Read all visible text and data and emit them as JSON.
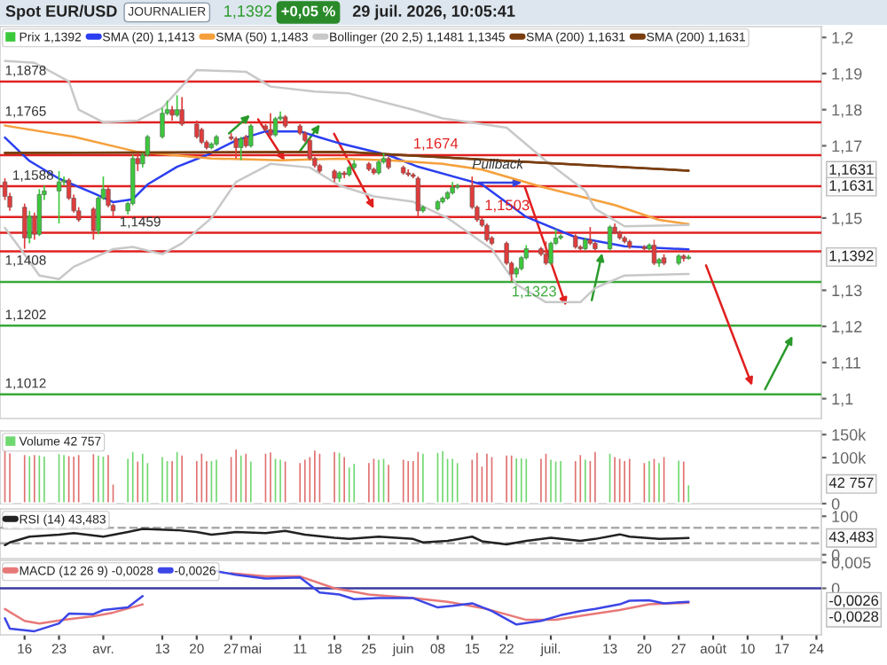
{
  "chart_data": [
    {
      "type": "candlestick",
      "title": "Spot EUR/USD",
      "annotations": [
        "JOURNALIER",
        "1,1392",
        "+0,05 %",
        "29 juil. 2026, 10:05:41",
        {
          "text": "1,1674",
          "x": "2026-06-03",
          "y": 1.1674
        },
        {
          "text": "1,1503",
          "x": "2026-06-10",
          "y": 1.1503
        },
        {
          "text": "1,1323",
          "x": "2026-06-23",
          "y": 1.1323
        },
        {
          "text": "Pullback",
          "x": "2026-06-15",
          "y": 1.1629
        },
        {
          "text": "1,1631",
          "y": 1.1631
        },
        "1,1631",
        {
          "text": "1,1392",
          "y": 1.1392
        }
      ],
      "xlim": [
        "2026-03-11",
        "2026-08-25"
      ],
      "ylim": [
        1.0945,
        1.203
      ],
      "yticks": [
        {
          "value": 1.2,
          "label": "1,2"
        },
        {
          "value": 1.19,
          "label": "1,19"
        },
        {
          "value": 1.18,
          "label": "1,18"
        },
        {
          "value": 1.17,
          "label": "1,17"
        },
        {
          "value": 1.15,
          "label": "1,15"
        },
        {
          "value": 1.13,
          "label": "1,13"
        },
        {
          "value": 1.12,
          "label": "1,12"
        },
        {
          "value": 1.11,
          "label": "1,11"
        },
        {
          "value": 1.1,
          "label": "1,1"
        }
      ],
      "tick_labels": "y",
      "legend": "top left",
      "ref_lines": [
        {
          "axis": "y",
          "value": 1.1878,
          "label": "1,1878",
          "color": "#e02020"
        },
        {
          "axis": "y",
          "value": 1.1765,
          "label": "1,1765",
          "color": "#e02020"
        },
        {
          "axis": "y",
          "value": 1.1674,
          "color": "#e02020"
        },
        {
          "axis": "y",
          "value": 1.1588,
          "label": "1,1588",
          "color": "#e02020"
        },
        {
          "axis": "y",
          "value": 1.1503,
          "color": "#e02020"
        },
        {
          "axis": "y",
          "value": 1.1459,
          "label": "1,1459",
          "color": "#e02020"
        },
        {
          "axis": "y",
          "value": 1.1408,
          "label": "1,1408",
          "color": "#e02020"
        },
        {
          "axis": "y",
          "value": 1.1323,
          "color": "#3aa83a"
        },
        {
          "axis": "y",
          "value": 1.1202,
          "label": "1,1202",
          "color": "#3aa83a"
        },
        {
          "axis": "y",
          "value": 1.1012,
          "label": "1,1012",
          "color": "#3aa83a"
        }
      ],
      "series": [
        {
          "type": "candlestick",
          "name": "Prix 1,1392",
          "x": [
            "2026-03-12",
            "2026-03-13",
            "2026-03-16",
            "2026-03-17",
            "2026-03-18",
            "2026-03-19",
            "2026-03-20",
            "2026-03-23",
            "2026-03-24",
            "2026-03-25",
            "2026-03-26",
            "2026-03-27",
            "2026-03-30",
            "2026-03-31",
            "2026-04-01",
            "2026-04-02",
            "2026-04-03",
            "2026-04-06",
            "2026-04-07",
            "2026-04-08",
            "2026-04-09",
            "2026-04-10",
            "2026-04-13",
            "2026-04-14",
            "2026-04-15",
            "2026-04-16",
            "2026-04-17",
            "2026-04-20",
            "2026-04-21",
            "2026-04-22",
            "2026-04-23",
            "2026-04-24",
            "2026-04-27",
            "2026-04-28",
            "2026-04-29",
            "2026-04-30",
            "2026-05-01",
            "2026-05-04",
            "2026-05-05",
            "2026-05-06",
            "2026-05-07",
            "2026-05-08",
            "2026-05-11",
            "2026-05-12",
            "2026-05-13",
            "2026-05-14",
            "2026-05-15",
            "2026-05-18",
            "2026-05-19",
            "2026-05-20",
            "2026-05-21",
            "2026-05-22",
            "2026-05-25",
            "2026-05-26",
            "2026-05-27",
            "2026-05-28",
            "2026-05-29",
            "2026-06-01",
            "2026-06-02",
            "2026-06-03",
            "2026-06-04",
            "2026-06-05",
            "2026-06-08",
            "2026-06-09",
            "2026-06-10",
            "2026-06-11",
            "2026-06-12",
            "2026-06-15",
            "2026-06-16",
            "2026-06-17",
            "2026-06-18",
            "2026-06-19",
            "2026-06-22",
            "2026-06-23",
            "2026-06-24",
            "2026-06-25",
            "2026-06-26",
            "2026-06-29",
            "2026-06-30",
            "2026-07-01",
            "2026-07-02",
            "2026-07-03",
            "2026-07-06",
            "2026-07-07",
            "2026-07-08",
            "2026-07-09",
            "2026-07-10",
            "2026-07-13",
            "2026-07-14",
            "2026-07-15",
            "2026-07-16",
            "2026-07-17",
            "2026-07-20",
            "2026-07-21",
            "2026-07-22",
            "2026-07-23",
            "2026-07-24",
            "2026-07-27",
            "2026-07-28",
            "2026-07-29"
          ],
          "ohlc": [
            [
              1.16,
              1.161,
              1.155,
              1.156
            ],
            [
              1.156,
              1.157,
              1.152,
              1.153
            ],
            [
              1.153,
              1.154,
              1.1415,
              1.1445
            ],
            [
              1.1445,
              1.152,
              1.143,
              1.1505
            ],
            [
              1.1505,
              1.1515,
              1.144,
              1.1455
            ],
            [
              1.1455,
              1.158,
              1.145,
              1.1565
            ],
            [
              1.1565,
              1.159,
              1.155,
              1.1575
            ],
            [
              1.1575,
              1.163,
              1.1485,
              1.16
            ],
            [
              1.16,
              1.1615,
              1.159,
              1.1605
            ],
            [
              1.1605,
              1.161,
              1.155,
              1.1555
            ],
            [
              1.1555,
              1.1565,
              1.1515,
              1.152
            ],
            [
              1.152,
              1.153,
              1.149,
              1.1495
            ],
            [
              1.1525,
              1.153,
              1.144,
              1.1465
            ],
            [
              1.1465,
              1.156,
              1.1455,
              1.1555
            ],
            [
              1.1555,
              1.1615,
              1.155,
              1.158
            ],
            [
              1.158,
              1.1585,
              1.153,
              1.1535
            ],
            [
              1.1535,
              1.154,
              1.1505,
              1.152
            ],
            [
              1.152,
              1.1545,
              1.151,
              1.154
            ],
            [
              1.154,
              1.1675,
              1.1535,
              1.1665
            ],
            [
              1.1665,
              1.168,
              1.163,
              1.165
            ],
            [
              1.165,
              1.168,
              1.164,
              1.1675
            ],
            [
              1.1675,
              1.173,
              1.167,
              1.1725
            ],
            [
              1.1725,
              1.1805,
              1.172,
              1.179
            ],
            [
              1.179,
              1.1825,
              1.1785,
              1.18
            ],
            [
              1.18,
              1.181,
              1.177,
              1.1785
            ],
            [
              1.1785,
              1.184,
              1.178,
              1.18
            ],
            [
              1.18,
              1.1835,
              1.1755,
              1.176
            ],
            [
              1.176,
              1.177,
              1.172,
              1.1725
            ],
            [
              1.1745,
              1.175,
              1.1705,
              1.171
            ],
            [
              1.171,
              1.1715,
              1.169,
              1.1695
            ],
            [
              1.1695,
              1.171,
              1.169,
              1.1705
            ],
            [
              1.1705,
              1.173,
              1.17,
              1.1725
            ],
            [
              1.1725,
              1.1735,
              1.1715,
              1.172
            ],
            [
              1.172,
              1.1725,
              1.1665,
              1.1695
            ],
            [
              1.1695,
              1.1725,
              1.166,
              1.172
            ],
            [
              1.1725,
              1.173,
              1.1695,
              1.17
            ],
            [
              1.17,
              1.176,
              1.1695,
              1.1755
            ],
            [
              1.1755,
              1.176,
              1.174,
              1.1745
            ],
            [
              1.1745,
              1.179,
              1.1725,
              1.173
            ],
            [
              1.173,
              1.178,
              1.1725,
              1.1775
            ],
            [
              1.1775,
              1.1795,
              1.177,
              1.178
            ],
            [
              1.178,
              1.1785,
              1.175,
              1.1755
            ],
            [
              1.1755,
              1.176,
              1.173,
              1.1735
            ],
            [
              1.1735,
              1.174,
              1.171,
              1.1715
            ],
            [
              1.1715,
              1.172,
              1.166,
              1.1665
            ],
            [
              1.1665,
              1.167,
              1.164,
              1.1645
            ],
            [
              1.1645,
              1.165,
              1.1625,
              1.163
            ],
            [
              1.163,
              1.1635,
              1.16,
              1.161
            ],
            [
              1.161,
              1.163,
              1.16,
              1.1625
            ],
            [
              1.1625,
              1.163,
              1.161,
              1.162
            ],
            [
              1.162,
              1.1645,
              1.1615,
              1.164
            ],
            [
              1.164,
              1.166,
              1.1635,
              1.165
            ],
            [
              1.165,
              1.1655,
              1.163,
              1.1635
            ],
            [
              1.1635,
              1.164,
              1.162,
              1.1625
            ],
            [
              1.1625,
              1.166,
              1.162,
              1.1655
            ],
            [
              1.1655,
              1.168,
              1.165,
              1.1665
            ],
            [
              1.1665,
              1.167,
              1.1635,
              1.164
            ],
            [
              1.164,
              1.1645,
              1.162,
              1.1625
            ],
            [
              1.1625,
              1.1635,
              1.1615,
              1.162
            ],
            [
              1.162,
              1.1625,
              1.161,
              1.1615
            ],
            [
              1.161,
              1.1615,
              1.1505,
              1.152
            ],
            [
              1.152,
              1.1535,
              1.1515,
              1.153
            ],
            [
              1.1525,
              1.155,
              1.152,
              1.1545
            ],
            [
              1.1545,
              1.156,
              1.154,
              1.1555
            ],
            [
              1.1555,
              1.1575,
              1.155,
              1.157
            ],
            [
              1.157,
              1.16,
              1.1565,
              1.1585
            ],
            [
              1.1585,
              1.1595,
              1.158,
              1.159
            ],
            [
              1.159,
              1.1615,
              1.1525,
              1.153
            ],
            [
              1.153,
              1.1535,
              1.149,
              1.1495
            ],
            [
              1.1495,
              1.15,
              1.1475,
              1.148
            ],
            [
              1.148,
              1.1485,
              1.1435,
              1.144
            ],
            [
              1.1445,
              1.145,
              1.1425,
              1.143
            ],
            [
              1.143,
              1.1435,
              1.137,
              1.1375
            ],
            [
              1.1375,
              1.138,
              1.1325,
              1.1345
            ],
            [
              1.1345,
              1.1365,
              1.1335,
              1.136
            ],
            [
              1.136,
              1.1395,
              1.1355,
              1.139
            ],
            [
              1.139,
              1.1425,
              1.1385,
              1.1415
            ],
            [
              1.1415,
              1.142,
              1.1395,
              1.14
            ],
            [
              1.14,
              1.1435,
              1.137,
              1.1375
            ],
            [
              1.1375,
              1.1435,
              1.137,
              1.143
            ],
            [
              1.143,
              1.147,
              1.1425,
              1.1445
            ],
            [
              1.1445,
              1.1455,
              1.144,
              1.145
            ],
            [
              1.145,
              1.1455,
              1.1415,
              1.142
            ],
            [
              1.142,
              1.1425,
              1.141,
              1.1415
            ],
            [
              1.1415,
              1.1445,
              1.141,
              1.144
            ],
            [
              1.144,
              1.1475,
              1.1425,
              1.143
            ],
            [
              1.143,
              1.1435,
              1.141,
              1.1415
            ],
            [
              1.1415,
              1.148,
              1.141,
              1.1475
            ],
            [
              1.1475,
              1.1485,
              1.1455,
              1.146
            ],
            [
              1.146,
              1.1465,
              1.144,
              1.1445
            ],
            [
              1.1445,
              1.145,
              1.143,
              1.1435
            ],
            [
              1.1435,
              1.144,
              1.1415,
              1.142
            ],
            [
              1.142,
              1.1425,
              1.141,
              1.1415
            ],
            [
              1.1415,
              1.143,
              1.141,
              1.1425
            ],
            [
              1.1425,
              1.144,
              1.137,
              1.1375
            ],
            [
              1.1375,
              1.139,
              1.1365,
              1.1385
            ],
            [
              1.139,
              1.14,
              1.137,
              1.1375
            ],
            [
              1.1375,
              1.14,
              1.137,
              1.1395
            ],
            [
              1.1395,
              1.14,
              1.138,
              1.1388
            ],
            [
              1.1388,
              1.1398,
              1.1385,
              1.1392
            ]
          ],
          "colors": [
            "#e03c3c",
            "#e03c3c",
            "#e03c3c",
            "#3cc83c",
            "#e03c3c",
            "#3cc83c",
            "#3cc83c",
            "#3cc83c",
            "#3cc83c",
            "#e03c3c",
            "#e03c3c",
            "#e03c3c",
            "#e03c3c",
            "#3cc83c",
            "#3cc83c",
            "#e03c3c",
            "#e03c3c",
            "#3cc83c",
            "#3cc83c",
            "#e03c3c",
            "#3cc83c",
            "#3cc83c",
            "#3cc83c",
            "#3cc83c",
            "#e03c3c",
            "#3cc83c",
            "#e03c3c",
            "#e03c3c",
            "#e03c3c",
            "#e03c3c",
            "#3cc83c",
            "#3cc83c",
            "#e03c3c",
            "#e03c3c",
            "#3cc83c",
            "#e03c3c",
            "#3cc83c",
            "#e03c3c",
            "#e03c3c",
            "#3cc83c",
            "#3cc83c",
            "#e03c3c",
            "#e03c3c",
            "#e03c3c",
            "#e03c3c",
            "#e03c3c",
            "#e03c3c",
            "#e03c3c",
            "#3cc83c",
            "#e03c3c",
            "#3cc83c",
            "#3cc83c",
            "#e03c3c",
            "#e03c3c",
            "#3cc83c",
            "#3cc83c",
            "#e03c3c",
            "#e03c3c",
            "#e03c3c",
            "#e03c3c",
            "#e03c3c",
            "#3cc83c",
            "#3cc83c",
            "#3cc83c",
            "#3cc83c",
            "#3cc83c",
            "#3cc83c",
            "#e03c3c",
            "#e03c3c",
            "#e03c3c",
            "#e03c3c",
            "#e03c3c",
            "#e03c3c",
            "#e03c3c",
            "#3cc83c",
            "#3cc83c",
            "#3cc83c",
            "#e03c3c",
            "#e03c3c",
            "#3cc83c",
            "#3cc83c",
            "#3cc83c",
            "#e03c3c",
            "#e03c3c",
            "#3cc83c",
            "#e03c3c",
            "#e03c3c",
            "#3cc83c",
            "#e03c3c",
            "#e03c3c",
            "#e03c3c",
            "#e03c3c",
            "#e03c3c",
            "#3cc83c",
            "#e03c3c",
            "#3cc83c",
            "#e03c3c",
            "#3cc83c",
            "#e03c3c",
            "#3cc83c"
          ]
        },
        {
          "type": "line",
          "name": "SMA (20) 1,1413",
          "color": "#2b3ff0",
          "x": [
            "2026-03-12",
            "2026-03-17",
            "2026-03-23",
            "2026-03-30",
            "2026-04-03",
            "2026-04-07",
            "2026-04-10",
            "2026-04-16",
            "2026-04-22",
            "2026-04-28",
            "2026-05-04",
            "2026-05-11",
            "2026-05-15",
            "2026-05-19",
            "2026-05-29",
            "2026-06-04",
            "2026-06-17",
            "2026-06-26",
            "2026-07-06",
            "2026-07-16",
            "2026-07-29"
          ],
          "values": [
            1.1723,
            1.1658,
            1.1609,
            1.1569,
            1.1544,
            1.1552,
            1.1593,
            1.1642,
            1.1674,
            1.1715,
            1.174,
            1.174,
            1.1723,
            1.1707,
            1.1674,
            1.1642,
            1.1593,
            1.1503,
            1.1447,
            1.1422,
            1.1413
          ]
        },
        {
          "type": "line",
          "name": "SMA (50) 1,1483",
          "color": "#f5a03c",
          "x": [
            "2026-03-12",
            "2026-03-26",
            "2026-04-08",
            "2026-04-23",
            "2026-05-07",
            "2026-05-19",
            "2026-05-29",
            "2026-06-09",
            "2026-06-17",
            "2026-06-29",
            "2026-07-14",
            "2026-07-23",
            "2026-07-29"
          ],
          "values": [
            1.1756,
            1.1725,
            1.1683,
            1.1665,
            1.166,
            1.1664,
            1.166,
            1.165,
            1.1634,
            1.1587,
            1.1536,
            1.1495,
            1.1483
          ]
        },
        {
          "type": "line",
          "name": "Bollinger (20 2,5) 1,1481 1,1345",
          "color": "#c8c8c8",
          "x": [
            "2026-03-12",
            "2026-03-18",
            "2026-03-25",
            "2026-03-27",
            "2026-04-01",
            "2026-04-08",
            "2026-04-13",
            "2026-04-20",
            "2026-04-30",
            "2026-05-05",
            "2026-05-14",
            "2026-05-21",
            "2026-06-03",
            "2026-06-09",
            "2026-06-22",
            "2026-06-30",
            "2026-07-08",
            "2026-07-10",
            "2026-07-16",
            "2026-07-29"
          ],
          "values": [
            1.1935,
            1.193,
            1.1878,
            1.18,
            1.1765,
            1.177,
            1.1805,
            1.191,
            1.1905,
            1.1864,
            1.185,
            1.1845,
            1.18,
            1.1776,
            1.175,
            1.1658,
            1.1575,
            1.1526,
            1.1477,
            1.1481
          ]
        },
        {
          "type": "line",
          "color": "#c8c8c8",
          "x": [
            "2026-03-12",
            "2026-03-16",
            "2026-03-19",
            "2026-03-23",
            "2026-03-26",
            "2026-04-03",
            "2026-04-07",
            "2026-04-13",
            "2026-04-17",
            "2026-04-23",
            "2026-04-28",
            "2026-05-05",
            "2026-05-13",
            "2026-05-19",
            "2026-05-26",
            "2026-06-03",
            "2026-06-10",
            "2026-06-19",
            "2026-06-24",
            "2026-06-30",
            "2026-07-07",
            "2026-07-10",
            "2026-07-16",
            "2026-07-29"
          ],
          "values": [
            1.1473,
            1.1399,
            1.1341,
            1.1331,
            1.1365,
            1.1414,
            1.142,
            1.14,
            1.143,
            1.15,
            1.16,
            1.165,
            1.164,
            1.159,
            1.156,
            1.1545,
            1.15,
            1.1414,
            1.1316,
            1.1267,
            1.1267,
            1.1306,
            1.1341,
            1.1345
          ]
        },
        {
          "type": "line",
          "name": "SMA (200) 1,1631",
          "color": "#7a3e10",
          "x": [
            "2026-03-12",
            "2026-05-20",
            "2026-07-29"
          ],
          "values": [
            1.168,
            1.1683,
            1.1631
          ]
        },
        {
          "type": "line",
          "name": "SMA (200) 1,1631",
          "color": "#7a3e10",
          "x": [
            "2026-03-12",
            "2026-05-20",
            "2026-07-29"
          ],
          "values": [
            1.168,
            1.1683,
            1.1631
          ]
        }
      ]
    },
    {
      "type": "bar",
      "xlim": [
        "2026-03-11",
        "2026-08-25"
      ],
      "ylim": [
        0,
        158000
      ],
      "yticks": [
        {
          "value": 150000,
          "label": "150k"
        },
        {
          "value": 100000,
          "label": "100k"
        },
        0
      ],
      "tick_labels": "y",
      "legend": "top left",
      "annotations": [
        {
          "text": "42 757",
          "y": 42757
        }
      ],
      "series": [
        {
          "name": "Volume 42 757",
          "x": [
            "2026-03-12",
            "2026-03-13",
            "2026-03-16",
            "2026-03-17",
            "2026-03-18",
            "2026-03-19",
            "2026-03-20",
            "2026-03-23",
            "2026-03-24",
            "2026-03-25",
            "2026-03-26",
            "2026-03-27",
            "2026-03-30",
            "2026-03-31",
            "2026-04-01",
            "2026-04-02",
            "2026-04-03",
            "2026-04-06",
            "2026-04-07",
            "2026-04-08",
            "2026-04-09",
            "2026-04-10",
            "2026-04-13",
            "2026-04-14",
            "2026-04-15",
            "2026-04-16",
            "2026-04-17",
            "2026-04-20",
            "2026-04-21",
            "2026-04-22",
            "2026-04-23",
            "2026-04-24",
            "2026-04-27",
            "2026-04-28",
            "2026-04-29",
            "2026-04-30",
            "2026-05-01",
            "2026-05-04",
            "2026-05-05",
            "2026-05-06",
            "2026-05-07",
            "2026-05-08",
            "2026-05-11",
            "2026-05-12",
            "2026-05-13",
            "2026-05-14",
            "2026-05-15",
            "2026-05-18",
            "2026-05-19",
            "2026-05-20",
            "2026-05-21",
            "2026-05-22",
            "2026-05-25",
            "2026-05-26",
            "2026-05-27",
            "2026-05-28",
            "2026-05-29",
            "2026-06-01",
            "2026-06-02",
            "2026-06-03",
            "2026-06-04",
            "2026-06-05",
            "2026-06-08",
            "2026-06-09",
            "2026-06-10",
            "2026-06-11",
            "2026-06-12",
            "2026-06-15",
            "2026-06-16",
            "2026-06-17",
            "2026-06-18",
            "2026-06-19",
            "2026-06-22",
            "2026-06-23",
            "2026-06-24",
            "2026-06-25",
            "2026-06-26",
            "2026-06-29",
            "2026-06-30",
            "2026-07-01",
            "2026-07-02",
            "2026-07-03",
            "2026-07-06",
            "2026-07-07",
            "2026-07-08",
            "2026-07-09",
            "2026-07-10",
            "2026-07-13",
            "2026-07-14",
            "2026-07-15",
            "2026-07-16",
            "2026-07-17",
            "2026-07-20",
            "2026-07-21",
            "2026-07-22",
            "2026-07-23",
            "2026-07-24",
            "2026-07-27",
            "2026-07-28",
            "2026-07-29"
          ],
          "values": [
            117000,
            112000,
            108000,
            106000,
            108000,
            107000,
            105000,
            110000,
            108000,
            106000,
            105000,
            108000,
            110000,
            107000,
            105000,
            108000,
            44000,
            100000,
            115000,
            94000,
            111000,
            91000,
            104000,
            95000,
            95000,
            115000,
            107000,
            95000,
            111000,
            95000,
            95000,
            98000,
            104000,
            120000,
            107000,
            111000,
            94000,
            111000,
            114000,
            100000,
            98000,
            94000,
            91000,
            98000,
            104000,
            118000,
            111000,
            115000,
            113000,
            104000,
            81000,
            89000,
            91000,
            100000,
            98000,
            100000,
            87000,
            98000,
            95000,
            95000,
            115000,
            111000,
            113000,
            117000,
            100000,
            100000,
            91000,
            98000,
            113000,
            83000,
            111000,
            104000,
            107000,
            107000,
            101000,
            101000,
            100000,
            100000,
            111000,
            98000,
            94000,
            95000,
            95000,
            108000,
            98000,
            95000,
            115000,
            111000,
            104000,
            100000,
            95000,
            100000,
            91000,
            95000,
            100000,
            91000,
            104000,
            96000,
            94000,
            42757
          ],
          "colors": [
            "#e07070",
            "#e07070",
            "#e07070",
            "#70d870",
            "#e07070",
            "#70d870",
            "#70d870",
            "#70d870",
            "#70d870",
            "#e07070",
            "#e07070",
            "#e07070",
            "#e07070",
            "#70d870",
            "#70d870",
            "#e07070",
            "#e07070",
            "#70d870",
            "#70d870",
            "#e07070",
            "#70d870",
            "#70d870",
            "#70d870",
            "#70d870",
            "#e07070",
            "#70d870",
            "#e07070",
            "#e07070",
            "#e07070",
            "#e07070",
            "#70d870",
            "#70d870",
            "#e07070",
            "#e07070",
            "#70d870",
            "#e07070",
            "#70d870",
            "#e07070",
            "#e07070",
            "#70d870",
            "#70d870",
            "#e07070",
            "#e07070",
            "#e07070",
            "#e07070",
            "#e07070",
            "#e07070",
            "#e07070",
            "#70d870",
            "#e07070",
            "#70d870",
            "#70d870",
            "#e07070",
            "#e07070",
            "#70d870",
            "#70d870",
            "#e07070",
            "#e07070",
            "#e07070",
            "#e07070",
            "#e07070",
            "#70d870",
            "#70d870",
            "#70d870",
            "#70d870",
            "#70d870",
            "#70d870",
            "#e07070",
            "#e07070",
            "#e07070",
            "#e07070",
            "#e07070",
            "#e07070",
            "#e07070",
            "#70d870",
            "#70d870",
            "#70d870",
            "#e07070",
            "#e07070",
            "#70d870",
            "#70d870",
            "#70d870",
            "#e07070",
            "#e07070",
            "#70d870",
            "#e07070",
            "#e07070",
            "#70d870",
            "#e07070",
            "#e07070",
            "#e07070",
            "#e07070",
            "#e07070",
            "#70d870",
            "#e07070",
            "#70d870",
            "#e07070",
            "#70d870",
            "#e07070",
            "#70d870"
          ]
        }
      ]
    },
    {
      "type": "line",
      "xlim": [
        "2026-03-11",
        "2026-08-25"
      ],
      "ylim": [
        -10,
        119
      ],
      "yticks": [
        100,
        0
      ],
      "tick_labels": "y",
      "legend": "top left",
      "ref_lines": [
        {
          "axis": "y",
          "value": 70,
          "color": "#aaaaaa",
          "line_style": "dashed"
        },
        {
          "axis": "y",
          "value": 30,
          "color": "#aaaaaa",
          "line_style": "dashed"
        }
      ],
      "annotations": [
        {
          "text": "43,483",
          "y": 43.483
        }
      ],
      "series": [
        {
          "name": "RSI (14) 43,483",
          "color": "#222222",
          "x": [
            "2026-03-12",
            "2026-03-13",
            "2026-03-17",
            "2026-03-23",
            "2026-03-26",
            "2026-04-01",
            "2026-04-06",
            "2026-04-09",
            "2026-04-16",
            "2026-04-20",
            "2026-04-23",
            "2026-04-28",
            "2026-05-04",
            "2026-05-08",
            "2026-05-12",
            "2026-05-18",
            "2026-05-21",
            "2026-05-27",
            "2026-06-03",
            "2026-06-05",
            "2026-06-10",
            "2026-06-15",
            "2026-06-17",
            "2026-06-22",
            "2026-06-26",
            "2026-07-01",
            "2026-07-07",
            "2026-07-10",
            "2026-07-15",
            "2026-07-17",
            "2026-07-23",
            "2026-07-29"
          ],
          "values": [
            25,
            32,
            47,
            52,
            56,
            47,
            59,
            67,
            64,
            59,
            52,
            59,
            56,
            62,
            52,
            44,
            41,
            47,
            41,
            32,
            36,
            47,
            35,
            27,
            36,
            44,
            36,
            41,
            53,
            47,
            41,
            43.483
          ]
        }
      ]
    },
    {
      "type": "line",
      "xlim": [
        "2026-03-11",
        "2026-08-25"
      ],
      "ylim": [
        -0.009,
        0.0054
      ],
      "yticks": [
        {
          "value": 0.005,
          "label": "0,005"
        },
        0
      ],
      "xticks": [
        {
          "value": "2026-03-16",
          "label": "16"
        },
        {
          "value": "2026-03-23",
          "label": "23"
        },
        {
          "value": "2026-04-01",
          "label": "avr."
        },
        {
          "value": "2026-04-13",
          "label": "13"
        },
        {
          "value": "2026-04-20",
          "label": "20"
        },
        {
          "value": "2026-04-27",
          "label": "27"
        },
        {
          "value": "2026-05-01",
          "label": "mai"
        },
        {
          "value": "2026-05-11",
          "label": "11"
        },
        {
          "value": "2026-05-18",
          "label": "18"
        },
        {
          "value": "2026-05-25",
          "label": "25"
        },
        {
          "value": "2026-06-01",
          "label": "juin"
        },
        {
          "value": "2026-06-08",
          "label": "08"
        },
        {
          "value": "2026-06-15",
          "label": "15"
        },
        {
          "value": "2026-06-22",
          "label": "22"
        },
        {
          "value": "2026-07-01",
          "label": "juil."
        },
        {
          "value": "2026-07-13",
          "label": "13"
        },
        {
          "value": "2026-07-20",
          "label": "20"
        },
        {
          "value": "2026-07-27",
          "label": "27"
        },
        {
          "value": "2026-08-03",
          "label": "août"
        },
        {
          "value": "2026-08-10",
          "label": "10"
        },
        {
          "value": "2026-08-17",
          "label": "17"
        },
        {
          "value": "2026-08-24",
          "label": "24"
        }
      ],
      "legend": "top left",
      "ref_lines": [
        {
          "axis": "y",
          "value": 0,
          "color": "#3a3aa0"
        }
      ],
      "annotations": [
        {
          "text": "-0,0026",
          "y": -0.0026
        },
        "-0,0028"
      ],
      "series": [
        {
          "name": "MACD (12 26 9) -0,0028",
          "color": "#e87878",
          "x": [
            "2026-03-12",
            "2026-03-16",
            "2026-03-19",
            "2026-03-24",
            "2026-03-30",
            "2026-04-03",
            "2026-04-09",
            "2026-04-16",
            "2026-04-27",
            "2026-05-04",
            "2026-05-11",
            "2026-05-18",
            "2026-05-25",
            "2026-06-03",
            "2026-06-10",
            "2026-06-18",
            "2026-06-26",
            "2026-07-02",
            "2026-07-08",
            "2026-07-15",
            "2026-07-21",
            "2026-07-29"
          ],
          "values": [
            -0.004,
            -0.0063,
            -0.0068,
            -0.0061,
            -0.0054,
            -0.0047,
            -0.0031,
            null,
            0.0029,
            0.0023,
            0.0023,
            0.0,
            -0.0012,
            -0.0019,
            -0.0026,
            -0.004,
            -0.0061,
            -0.0061,
            -0.0052,
            -0.0042,
            -0.0031,
            -0.0028
          ]
        },
        {
          "name": "-0,0026",
          "color": "#3c46e6",
          "x": [
            "2026-03-12",
            "2026-03-13",
            "2026-03-18",
            "2026-03-23",
            "2026-03-25",
            "2026-03-30",
            "2026-04-01",
            "2026-04-06",
            "2026-04-09",
            "2026-04-16",
            "2026-04-24",
            "2026-04-28",
            "2026-05-04",
            "2026-05-11",
            "2026-05-15",
            "2026-05-19",
            "2026-05-22",
            "2026-05-27",
            "2026-06-03",
            "2026-06-08",
            "2026-06-11",
            "2026-06-15",
            "2026-06-19",
            "2026-06-24",
            "2026-06-29",
            "2026-07-03",
            "2026-07-07",
            "2026-07-10",
            "2026-07-15",
            "2026-07-17",
            "2026-07-21",
            "2026-07-24",
            "2026-07-29"
          ],
          "values": [
            -0.0058,
            -0.0078,
            -0.0083,
            -0.0068,
            -0.0049,
            -0.005,
            -0.0042,
            -0.0037,
            -0.0015,
            null,
            0.0033,
            0.0026,
            0.0019,
            0.0021,
            -0.0008,
            -0.0012,
            -0.0021,
            -0.0019,
            -0.0019,
            -0.0037,
            -0.0034,
            -0.0029,
            -0.0044,
            -0.007,
            -0.0063,
            -0.0052,
            -0.0044,
            -0.004,
            -0.0031,
            -0.0024,
            -0.0023,
            -0.0029,
            -0.0026
          ]
        }
      ]
    }
  ]
}
